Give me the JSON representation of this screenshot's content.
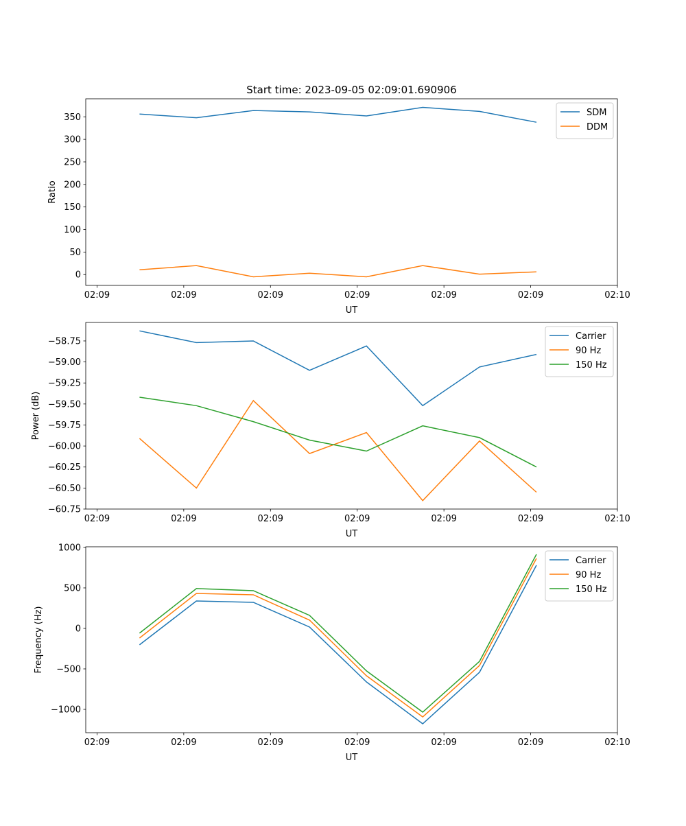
{
  "title": "Start time: 2023-09-05 02:09:01.690906",
  "colors": {
    "c0": "#1f77b4",
    "c1": "#ff7f0e",
    "c2": "#2ca02c"
  },
  "chart_data": [
    {
      "type": "line",
      "xlabel": "UT",
      "ylabel": "Ratio",
      "xlim": [
        -1.3,
        60
      ],
      "x_ticks": [
        0,
        10,
        20,
        30,
        40,
        50,
        60
      ],
      "x_tick_labels": [
        "02:09",
        "02:09",
        "02:09",
        "02:09",
        "02:09",
        "02:09",
        "02:10"
      ],
      "ylim": [
        -24,
        390
      ],
      "y_ticks": [
        0,
        50,
        100,
        150,
        200,
        250,
        300,
        350
      ],
      "y_tick_labels": [
        "0",
        "50",
        "100",
        "150",
        "200",
        "250",
        "300",
        "350"
      ],
      "x": [
        4.9,
        11.46,
        18.02,
        24.5,
        31.07,
        37.55,
        44.1,
        50.67
      ],
      "legend": "top-right",
      "series": [
        {
          "name": "SDM",
          "color": "#1f77b4",
          "values": [
            356,
            348,
            364,
            361,
            352,
            371,
            362,
            338
          ]
        },
        {
          "name": "DDM",
          "color": "#ff7f0e",
          "values": [
            10.6,
            20,
            -5,
            3,
            -5,
            20,
            1,
            6
          ]
        }
      ]
    },
    {
      "type": "line",
      "xlabel": "UT",
      "ylabel": "Power (dB)",
      "xlim": [
        -1.3,
        60
      ],
      "x_ticks": [
        0,
        10,
        20,
        30,
        40,
        50,
        60
      ],
      "x_tick_labels": [
        "02:09",
        "02:09",
        "02:09",
        "02:09",
        "02:09",
        "02:09",
        "02:10"
      ],
      "ylim": [
        -60.75,
        -58.53
      ],
      "y_ticks": [
        -58.75,
        -59.0,
        -59.25,
        -59.5,
        -59.75,
        -60.0,
        -60.25,
        -60.5,
        -60.75
      ],
      "y_tick_labels": [
        "−58.75",
        "−59.00",
        "−59.25",
        "−59.50",
        "−59.75",
        "−60.00",
        "−60.25",
        "−60.50",
        "−60.75"
      ],
      "x": [
        4.9,
        11.46,
        18.02,
        24.5,
        31.07,
        37.55,
        44.1,
        50.67
      ],
      "legend": "top-right",
      "series": [
        {
          "name": "Carrier",
          "color": "#1f77b4",
          "values": [
            -58.63,
            -58.77,
            -58.75,
            -59.1,
            -58.81,
            -59.52,
            -59.06,
            -58.91
          ]
        },
        {
          "name": "90 Hz",
          "color": "#ff7f0e",
          "values": [
            -59.91,
            -60.5,
            -59.46,
            -60.09,
            -59.84,
            -60.65,
            -59.94,
            -60.55
          ]
        },
        {
          "name": "150 Hz",
          "color": "#2ca02c",
          "values": [
            -59.42,
            -59.52,
            -59.71,
            -59.93,
            -60.06,
            -59.76,
            -59.9,
            -60.25
          ]
        }
      ]
    },
    {
      "type": "line",
      "xlabel": "UT",
      "ylabel": "Frequency (Hz)",
      "xlim": [
        -1.3,
        60
      ],
      "x_ticks": [
        0,
        10,
        20,
        30,
        40,
        50,
        60
      ],
      "x_tick_labels": [
        "02:09",
        "02:09",
        "02:09",
        "02:09",
        "02:09",
        "02:09",
        "02:10"
      ],
      "ylim": [
        -1288,
        1008
      ],
      "y_ticks": [
        -1000,
        -500,
        0,
        500,
        1000
      ],
      "y_tick_labels": [
        "−1000",
        "−500",
        "0",
        "500",
        "1000"
      ],
      "x": [
        4.9,
        11.46,
        18.02,
        24.5,
        31.07,
        37.55,
        44.1,
        50.67
      ],
      "legend": "top-right",
      "series": [
        {
          "name": "Carrier",
          "color": "#1f77b4",
          "values": [
            -203,
            339,
            322,
            17,
            -661,
            -1178,
            -542,
            780
          ]
        },
        {
          "name": "90 Hz",
          "color": "#ff7f0e",
          "values": [
            -119,
            432,
            415,
            102,
            -585,
            -1093,
            -458,
            864
          ]
        },
        {
          "name": "150 Hz",
          "color": "#2ca02c",
          "values": [
            -59,
            492,
            466,
            161,
            -525,
            -1034,
            -407,
            915
          ]
        }
      ]
    }
  ]
}
